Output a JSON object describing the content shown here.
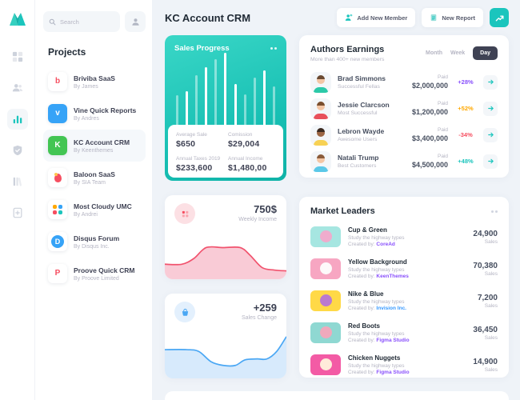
{
  "sidebar": {
    "search_placeholder": "Search",
    "section_title": "Projects",
    "projects": [
      {
        "name": "Briviba SaaS",
        "author": "By James",
        "selected": false,
        "icon": {
          "type": "letter",
          "text": "b",
          "color": "#F64E60",
          "bg": "#FFFFFF"
        }
      },
      {
        "name": "Vine Quick Reports",
        "author": "By Andres",
        "selected": false,
        "icon": {
          "type": "letter",
          "text": "v",
          "color": "#FFFFFF",
          "bg": "#36A3F7"
        }
      },
      {
        "name": "KC Account CRM",
        "author": "By Keenthemes",
        "selected": true,
        "icon": {
          "type": "letter",
          "text": "K",
          "color": "#FFFFFF",
          "bg": "#43C553"
        }
      },
      {
        "name": "Baloon SaaS",
        "author": "By SIA Team",
        "selected": false,
        "icon": {
          "type": "balloon",
          "text": "",
          "color": "#F64E60",
          "bg": "#FFFFFF"
        }
      },
      {
        "name": "Most Cloudy UMC",
        "author": "By Andrei",
        "selected": false,
        "icon": {
          "type": "clover",
          "text": "",
          "color": "#FFA800",
          "bg": "#FFFFFF"
        }
      },
      {
        "name": "Disqus Forum",
        "author": "By Disqus Inc.",
        "selected": false,
        "icon": {
          "type": "letter",
          "text": "D",
          "color": "#36A3F7",
          "bg": "#FFFFFF",
          "inner_round": true
        }
      },
      {
        "name": "Proove Quick CRM",
        "author": "By Proove Limited",
        "selected": false,
        "icon": {
          "type": "letter",
          "text": "P",
          "color": "#F64E60",
          "bg": "#FFFFFF"
        }
      }
    ]
  },
  "header": {
    "title": "KC Account CRM",
    "add_member_label": "Add New Member",
    "new_report_label": "New Report"
  },
  "sales_progress": {
    "title": "Sales Progress",
    "stats": [
      {
        "label": "Average Sale",
        "value": "$650"
      },
      {
        "label": "Comission",
        "value": "$29,004"
      },
      {
        "label": "Annual Taxes 2019",
        "value": "$233,600"
      },
      {
        "label": "Annual Income",
        "value": "$1,480,00"
      }
    ]
  },
  "authors": {
    "title": "Authors Earnings",
    "subtitle": "More than 400+ new members",
    "tabs": [
      "Month",
      "Week",
      "Day"
    ],
    "active_tab": "Day",
    "rows": [
      {
        "name": "Brad Simmons",
        "desc": "Successful Fellas",
        "paid_label": "Paid",
        "amount": "$2,000,000",
        "delta": "+28%",
        "delta_color": "#8950FC",
        "avatar": {
          "skin": "#F3C6A5",
          "hair": "#6B4A32",
          "shirt": "#2BC9A8"
        }
      },
      {
        "name": "Jessie Clarcson",
        "desc": "Most Successful",
        "paid_label": "Paid",
        "amount": "$1,200,000",
        "delta": "+52%",
        "delta_color": "#FFA800",
        "avatar": {
          "skin": "#F3C6A5",
          "hair": "#7A4E2D",
          "shirt": "#E8505B"
        }
      },
      {
        "name": "Lebron Wayde",
        "desc": "Awesome Users",
        "paid_label": "Paid",
        "amount": "$3,400,000",
        "delta": "-34%",
        "delta_color": "#F64E60",
        "avatar": {
          "skin": "#9C6644",
          "hair": "#3B2A20",
          "shirt": "#F7D154"
        }
      },
      {
        "name": "Natali Trump",
        "desc": "Best Customers",
        "paid_label": "Paid",
        "amount": "$4,500,000",
        "delta": "+48%",
        "delta_color": "#1BC5BD",
        "avatar": {
          "skin": "#F3C6A5",
          "hair": "#8A5B3A",
          "shirt": "#5BC8E8"
        }
      }
    ]
  },
  "weekly_income": {
    "value": "750$",
    "label": "Weekly Income",
    "line_color": "#F1536E",
    "fill_color": "#F9CBD6"
  },
  "sales_change": {
    "value": "+259",
    "label": "Sales Change",
    "line_color": "#4AA7F4",
    "fill_color": "#D7EAFC"
  },
  "market_leaders": {
    "title": "Market Leaders",
    "rows": [
      {
        "name": "Cup & Green",
        "desc": "Study the highway types",
        "created_label": "Created by:",
        "creator": "CoreAd",
        "creator_color": "#8950FC",
        "sales": "24,900",
        "sales_label": "Sales",
        "thumb_bg": "#A6E6E1",
        "thumb_accent": "#F2A9CB"
      },
      {
        "name": "Yellow Background",
        "desc": "Study the highway types",
        "created_label": "Created by:",
        "creator": "KeenThemes",
        "creator_color": "#8950FC",
        "sales": "70,380",
        "sales_label": "Sales",
        "thumb_bg": "#F7A6C2",
        "thumb_accent": "#FDFDFD"
      },
      {
        "name": "Nike & Blue",
        "desc": "Study the highway types",
        "created_label": "Created by:",
        "creator": "Invision Inc.",
        "creator_color": "#3699FF",
        "sales": "7,200",
        "sales_label": "Sales",
        "thumb_bg": "#FFD947",
        "thumb_accent": "#B675D6"
      },
      {
        "name": "Red Boots",
        "desc": "Study the highway types",
        "created_label": "Created by:",
        "creator": "Figma Studio",
        "creator_color": "#8950FC",
        "sales": "36,450",
        "sales_label": "Sales",
        "thumb_bg": "#8FD8D2",
        "thumb_accent": "#F4A7BB"
      },
      {
        "name": "Chicken Nuggets",
        "desc": "Study the highway types",
        "created_label": "Created by:",
        "creator": "Figma Studio",
        "creator_color": "#8950FC",
        "sales": "14,900",
        "sales_label": "Sales",
        "thumb_bg": "#F35BA5",
        "thumb_accent": "#FFF3DC"
      }
    ]
  },
  "chart_data": [
    {
      "type": "bar",
      "title": "Sales Progress",
      "ylim": [
        0,
        100
      ],
      "grid": false,
      "note": "decorative white bars on teal card, no axes",
      "values": [
        42,
        48,
        70,
        80,
        91,
        100,
        58,
        44,
        66,
        76,
        54
      ],
      "opacities": [
        0.45,
        1,
        0.45,
        1,
        0.45,
        1,
        1,
        0.45,
        0.45,
        1,
        0.45
      ]
    },
    {
      "type": "area",
      "title": "Weekly Income",
      "value_label": "750$",
      "grid": false,
      "x": [
        0,
        14,
        24,
        34,
        48,
        62,
        70,
        80,
        90,
        100
      ],
      "y": [
        36,
        36,
        50,
        76,
        76,
        76,
        58,
        28,
        22,
        20
      ]
    },
    {
      "type": "area",
      "title": "Sales Change",
      "value_label": "+259",
      "grid": false,
      "x": [
        0,
        18,
        28,
        38,
        48,
        58,
        66,
        76,
        84,
        92,
        100
      ],
      "y": [
        62,
        62,
        58,
        36,
        28,
        28,
        40,
        42,
        42,
        58,
        90
      ]
    }
  ]
}
